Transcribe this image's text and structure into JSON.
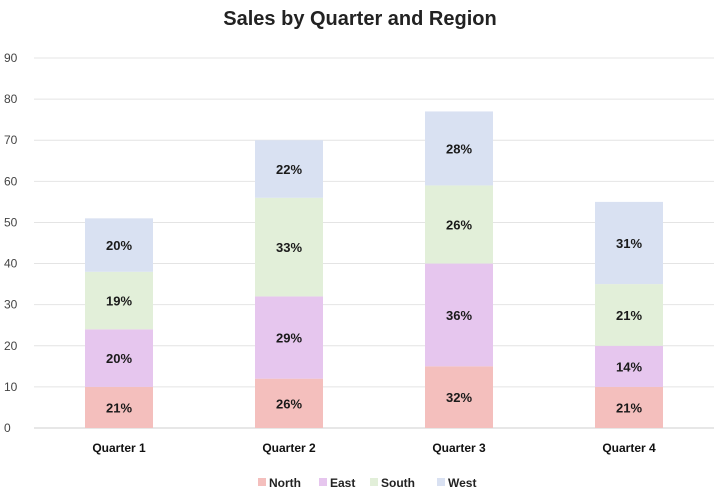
{
  "chart_data": {
    "type": "bar",
    "stacked": true,
    "title": "Sales by Quarter and Region",
    "xlabel": "",
    "ylabel": "",
    "ylim": [
      0,
      90
    ],
    "yticks": [
      0,
      10,
      20,
      30,
      40,
      50,
      60,
      70,
      80,
      90
    ],
    "grid": true,
    "legend_position": "bottom",
    "categories": [
      "Quarter 1",
      "Quarter 2",
      "Quarter 3",
      "Quarter 4"
    ],
    "series": [
      {
        "name": "North",
        "color": "#f4bfbd",
        "values": [
          10,
          12,
          15,
          10
        ],
        "labels": [
          "21%",
          "26%",
          "32%",
          "21%"
        ]
      },
      {
        "name": "East",
        "color": "#e6c6ee",
        "values": [
          14,
          20,
          25,
          10
        ],
        "labels": [
          "20%",
          "29%",
          "36%",
          "14%"
        ]
      },
      {
        "name": "South",
        "color": "#e2efd9",
        "values": [
          14,
          24,
          19,
          15
        ],
        "labels": [
          "19%",
          "33%",
          "26%",
          "21%"
        ]
      },
      {
        "name": "West",
        "color": "#d9e1f2",
        "values": [
          13,
          14,
          18,
          20
        ],
        "labels": [
          "20%",
          "22%",
          "28%",
          "31%"
        ]
      }
    ]
  }
}
